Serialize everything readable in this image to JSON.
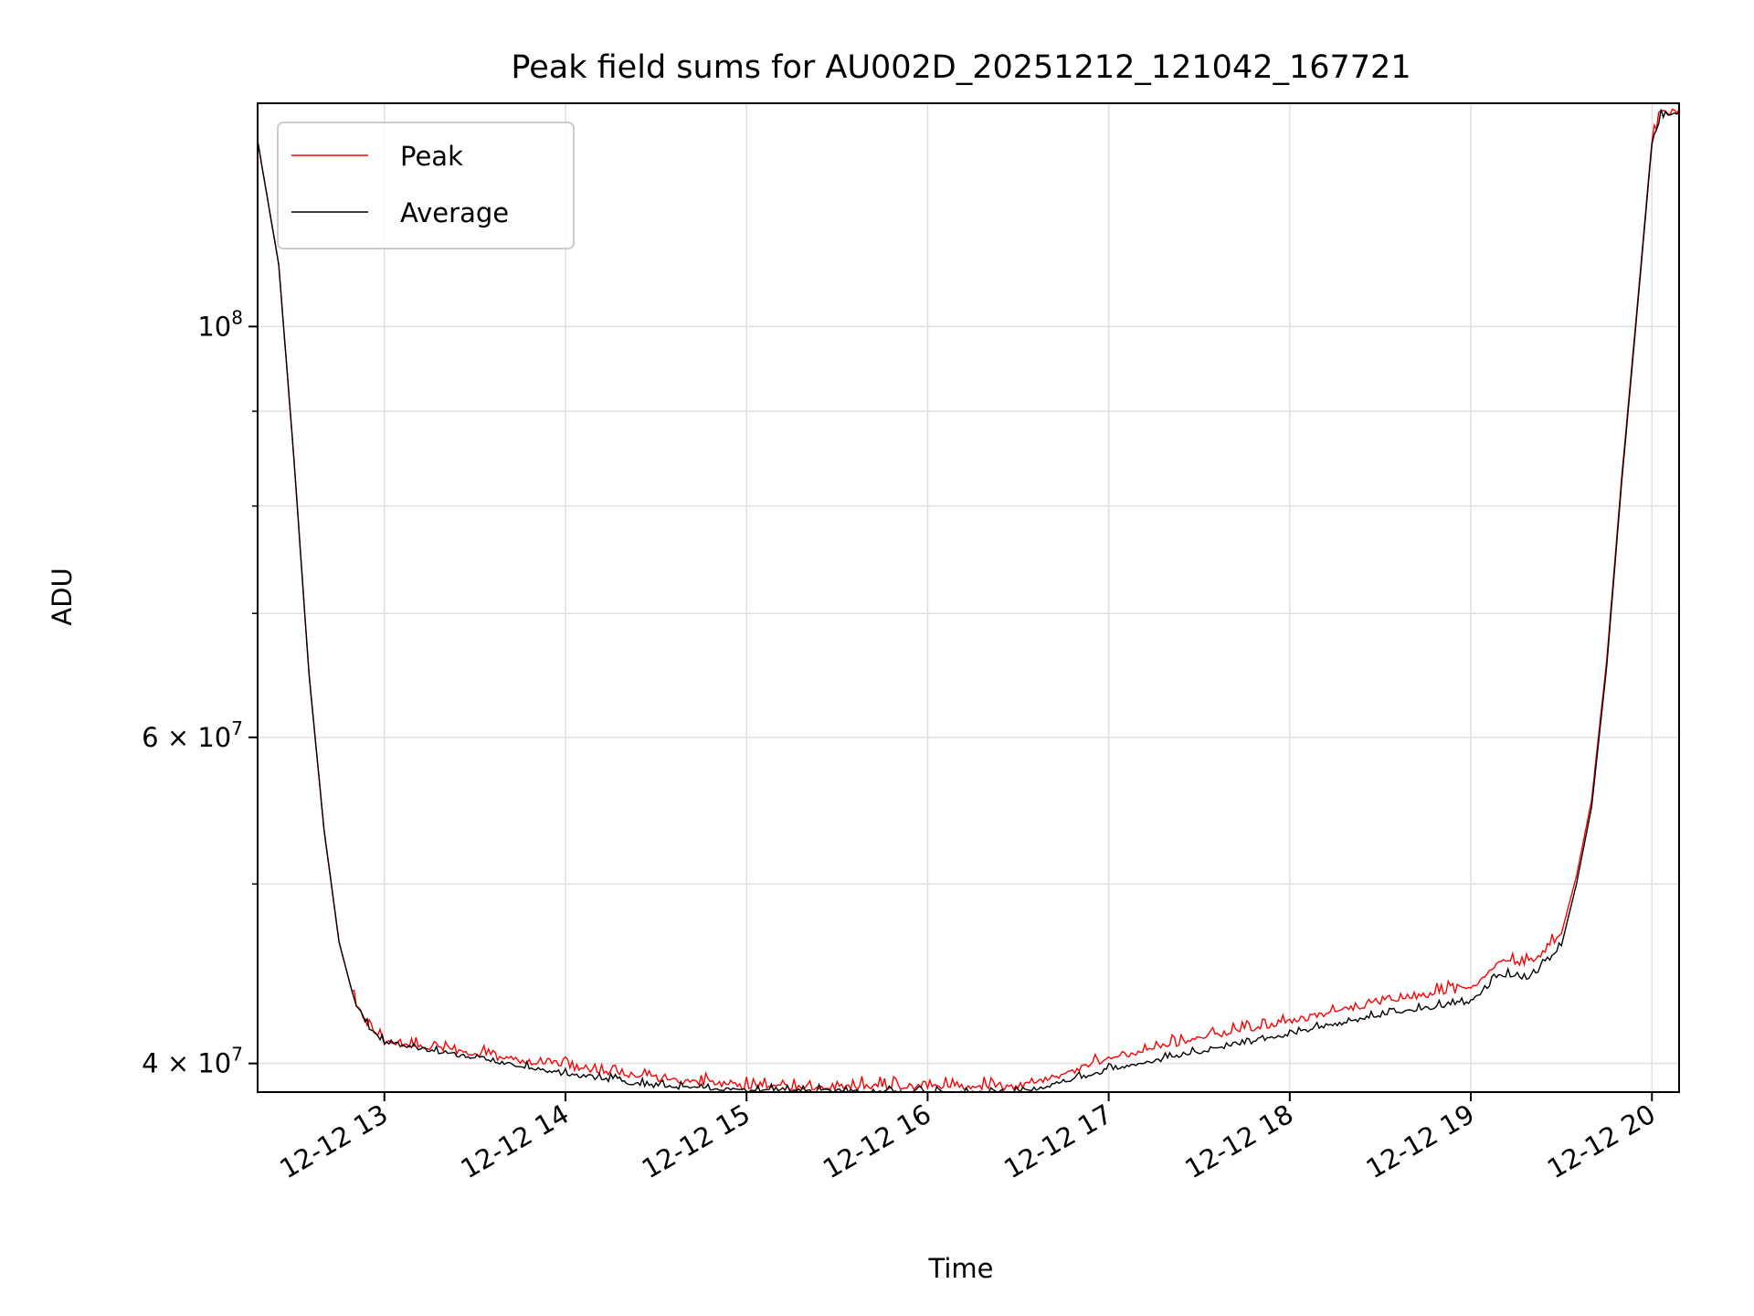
{
  "chart_data": {
    "type": "line",
    "title": "Peak field sums for AU002D_20251212_121042_167721",
    "xlabel": "Time",
    "ylabel": "ADU",
    "y_scale": "log",
    "grid": true,
    "legend_position": "top-left",
    "x_range": [
      "2025-12-12 12:18",
      "2025-12-12 20:09"
    ],
    "ylim": [
      38600000,
      132000000
    ],
    "x_ticks": [
      {
        "value": "2025-12-12 13:00",
        "label": "12-12 13"
      },
      {
        "value": "2025-12-12 14:00",
        "label": "12-12 14"
      },
      {
        "value": "2025-12-12 15:00",
        "label": "12-12 15"
      },
      {
        "value": "2025-12-12 16:00",
        "label": "12-12 16"
      },
      {
        "value": "2025-12-12 17:00",
        "label": "12-12 17"
      },
      {
        "value": "2025-12-12 18:00",
        "label": "12-12 18"
      },
      {
        "value": "2025-12-12 19:00",
        "label": "12-12 19"
      },
      {
        "value": "2025-12-12 20:00",
        "label": "12-12 20"
      }
    ],
    "y_ticks_major": [
      {
        "value": 100000000,
        "base": "10",
        "exp": "8"
      },
      {
        "value": 60000000,
        "base": "6 × 10",
        "exp": "7"
      },
      {
        "value": 40000000,
        "base": "4 × 10",
        "exp": "7"
      }
    ],
    "y_ticks_minor": [
      50000000,
      70000000,
      80000000,
      90000000
    ],
    "series": [
      {
        "name": "Peak",
        "color": "#ff0000",
        "x": [
          "2025-12-12 12:18",
          "2025-12-12 12:25",
          "2025-12-12 12:30",
          "2025-12-12 12:35",
          "2025-12-12 12:40",
          "2025-12-12 12:45",
          "2025-12-12 12:50",
          "2025-12-12 12:55",
          "2025-12-12 13:00",
          "2025-12-12 13:30",
          "2025-12-12 14:00",
          "2025-12-12 14:30",
          "2025-12-12 15:00",
          "2025-12-12 15:30",
          "2025-12-12 16:00",
          "2025-12-12 16:30",
          "2025-12-12 16:45",
          "2025-12-12 17:00",
          "2025-12-12 17:30",
          "2025-12-12 18:00",
          "2025-12-12 18:30",
          "2025-12-12 19:00",
          "2025-12-12 19:10",
          "2025-12-12 19:20",
          "2025-12-12 19:30",
          "2025-12-12 19:35",
          "2025-12-12 19:40",
          "2025-12-12 19:45",
          "2025-12-12 19:50",
          "2025-12-12 19:55",
          "2025-12-12 20:00",
          "2025-12-12 20:03",
          "2025-12-12 20:09"
        ],
        "y": [
          126000000,
          108000000,
          85000000,
          65000000,
          53500000,
          46500000,
          43300000,
          41800000,
          41100000,
          40500000,
          39900000,
          39300000,
          38900000,
          38900000,
          38900000,
          38900000,
          39500000,
          40300000,
          41300000,
          42200000,
          43200000,
          44000000,
          45400000,
          45300000,
          47000000,
          50500000,
          55500000,
          66000000,
          83000000,
          102000000,
          126000000,
          130500000,
          131000000
        ]
      },
      {
        "name": "Average",
        "color": "#000000",
        "x": [
          "2025-12-12 12:18",
          "2025-12-12 12:25",
          "2025-12-12 12:30",
          "2025-12-12 12:35",
          "2025-12-12 12:40",
          "2025-12-12 12:45",
          "2025-12-12 12:50",
          "2025-12-12 12:55",
          "2025-12-12 13:00",
          "2025-12-12 13:30",
          "2025-12-12 14:00",
          "2025-12-12 14:30",
          "2025-12-12 15:00",
          "2025-12-12 15:30",
          "2025-12-12 16:00",
          "2025-12-12 16:30",
          "2025-12-12 16:45",
          "2025-12-12 17:00",
          "2025-12-12 17:30",
          "2025-12-12 18:00",
          "2025-12-12 18:30",
          "2025-12-12 19:00",
          "2025-12-12 19:10",
          "2025-12-12 19:20",
          "2025-12-12 19:30",
          "2025-12-12 19:35",
          "2025-12-12 19:40",
          "2025-12-12 19:45",
          "2025-12-12 19:50",
          "2025-12-12 19:55",
          "2025-12-12 20:00",
          "2025-12-12 20:03",
          "2025-12-12 20:09"
        ],
        "y": [
          126000000,
          108000000,
          85000000,
          65000000,
          53500000,
          46500000,
          43300000,
          41800000,
          41100000,
          40300000,
          39500000,
          38900000,
          38700000,
          38700000,
          38600000,
          38600000,
          39100000,
          39700000,
          40600000,
          41500000,
          42500000,
          43200000,
          44700000,
          44500000,
          46300000,
          50000000,
          55000000,
          65500000,
          82500000,
          101500000,
          125500000,
          130000000,
          130500000
        ]
      }
    ]
  }
}
